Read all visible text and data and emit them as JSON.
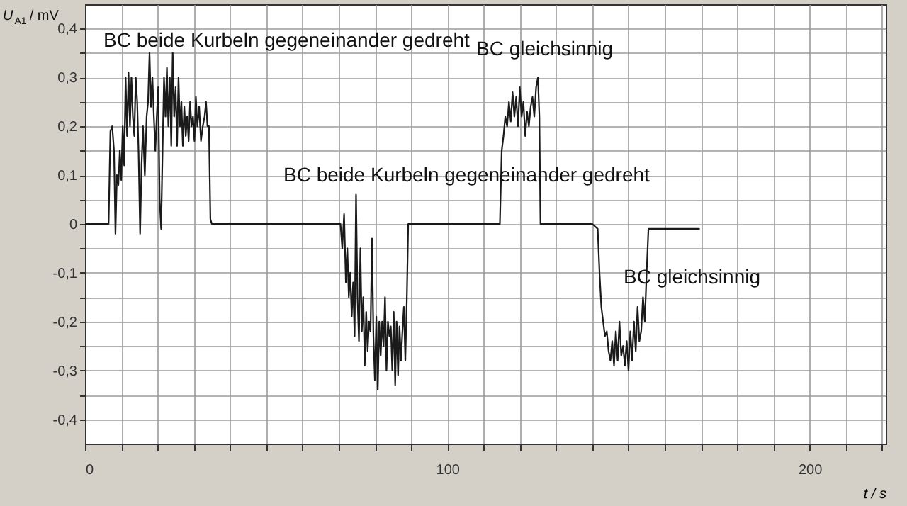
{
  "chart_data": {
    "type": "line",
    "x": [
      0,
      3,
      6.5,
      7,
      7.5,
      8,
      8.4,
      8.8,
      9.2,
      9.6,
      10,
      10.4,
      10.8,
      11.2,
      11.6,
      12,
      12.4,
      12.8,
      13.2,
      13.6,
      14,
      14.4,
      14.8,
      15.2,
      15.6,
      16,
      16.5,
      17,
      17.4,
      17.8,
      18.2,
      18.6,
      19,
      19.4,
      19.8,
      20.2,
      20.6,
      21,
      21.4,
      21.8,
      22.2,
      22.6,
      23,
      23.4,
      23.8,
      24.2,
      24.6,
      25,
      25.4,
      25.8,
      26.2,
      26.6,
      27,
      27.4,
      27.8,
      28.2,
      28.6,
      29,
      29.4,
      29.8,
      30.2,
      30.6,
      31,
      31.5,
      32,
      32.5,
      33,
      33.4,
      33.8,
      34.2,
      34.6,
      35,
      50,
      70.5,
      71,
      71.5,
      72,
      72.4,
      72.8,
      73.2,
      73.6,
      74,
      74.4,
      74.8,
      75.2,
      75.6,
      76,
      76.4,
      76.8,
      77.2,
      77.6,
      78,
      78.4,
      78.8,
      79.2,
      79.6,
      80,
      80.4,
      80.8,
      81.2,
      81.6,
      82,
      82.4,
      82.8,
      83.2,
      83.6,
      84,
      84.4,
      84.8,
      85.2,
      85.6,
      86,
      86.4,
      86.8,
      87.2,
      87.6,
      88,
      88.4,
      88.8,
      89.2,
      100,
      114.5,
      115,
      115.5,
      116,
      116.5,
      117,
      117.5,
      118,
      118.5,
      119,
      119.5,
      120,
      120.5,
      121,
      121.5,
      122,
      122.5,
      123,
      123.5,
      124,
      124.5,
      125,
      125.4,
      125.7,
      140,
      141.5,
      142,
      142.5,
      143,
      143.5,
      144,
      144.5,
      145,
      145.5,
      146,
      146.5,
      147,
      147.5,
      148,
      148.5,
      149,
      149.5,
      150,
      150.5,
      151,
      151.5,
      152,
      152.5,
      153,
      153.5,
      154,
      154.5,
      155,
      155.5,
      169.5
    ],
    "series": [
      {
        "color": "#1a1a1a",
        "values": [
          0,
          0,
          0,
          0.19,
          0.2,
          0.15,
          -0.02,
          0.1,
          0.08,
          0.15,
          0.09,
          0.2,
          0.12,
          0.3,
          0.18,
          0.31,
          0.2,
          0.3,
          0.22,
          0.18,
          0.3,
          0.25,
          0.14,
          -0.02,
          0.12,
          0.2,
          0.1,
          0.22,
          0.25,
          0.35,
          0.24,
          0.3,
          0.22,
          0.15,
          0.22,
          0.28,
          0.05,
          -0.01,
          0.15,
          0.3,
          0.22,
          0.32,
          0.2,
          0.3,
          0.16,
          0.35,
          0.22,
          0.28,
          0.16,
          0.3,
          0.2,
          0.25,
          0.16,
          0.24,
          0.18,
          0.22,
          0.17,
          0.25,
          0.2,
          0.22,
          0.17,
          0.26,
          0.2,
          0.24,
          0.17,
          0.2,
          0.22,
          0.25,
          0.2,
          0.2,
          0.01,
          0,
          0,
          0,
          -0.05,
          0.02,
          -0.12,
          -0.05,
          -0.15,
          -0.1,
          -0.19,
          -0.12,
          -0.23,
          0.06,
          -0.15,
          -0.24,
          -0.05,
          -0.22,
          -0.15,
          -0.29,
          -0.18,
          -0.26,
          -0.2,
          -0.22,
          -0.03,
          -0.23,
          -0.32,
          -0.19,
          -0.34,
          -0.2,
          -0.27,
          -0.2,
          -0.25,
          -0.15,
          -0.3,
          -0.2,
          -0.23,
          -0.21,
          -0.3,
          -0.18,
          -0.33,
          -0.2,
          -0.31,
          -0.21,
          -0.28,
          -0.22,
          -0.17,
          -0.28,
          -0.16,
          0,
          0,
          0,
          0.15,
          0.18,
          0.22,
          0.2,
          0.25,
          0.21,
          0.27,
          0.22,
          0.26,
          0.2,
          0.28,
          0.22,
          0.25,
          0.18,
          0.23,
          0.2,
          0.24,
          0.26,
          0.22,
          0.28,
          0.3,
          0.22,
          0,
          0,
          -0.01,
          -0.1,
          -0.17,
          -0.2,
          -0.23,
          -0.22,
          -0.26,
          -0.28,
          -0.24,
          -0.29,
          -0.22,
          -0.28,
          -0.2,
          -0.27,
          -0.25,
          -0.29,
          -0.24,
          -0.3,
          -0.22,
          -0.28,
          -0.2,
          -0.26,
          -0.17,
          -0.24,
          -0.22,
          -0.15,
          -0.2,
          -0.1,
          -0.01,
          -0.01
        ]
      }
    ],
    "xlabel": "t / s",
    "ylabel": "U$_{A1}$ / mV",
    "xlim": [
      0,
      221
    ],
    "ylim": [
      -0.45,
      0.45
    ],
    "xticks": [
      0,
      {
        "value": 10,
        "label": null
      },
      {
        "value": 20,
        "label": null
      },
      {
        "value": 30,
        "label": null
      },
      {
        "value": 40,
        "label": null
      },
      {
        "value": 50,
        "label": null
      },
      {
        "value": 60,
        "label": null
      },
      {
        "value": 70,
        "label": null
      },
      {
        "value": 80,
        "label": null
      },
      {
        "value": 90,
        "label": null
      },
      100,
      {
        "value": 110,
        "label": null
      },
      {
        "value": 120,
        "label": null
      },
      {
        "value": 130,
        "label": null
      },
      {
        "value": 140,
        "label": null
      },
      {
        "value": 150,
        "label": null
      },
      {
        "value": 160,
        "label": null
      },
      {
        "value": 170,
        "label": null
      },
      {
        "value": 180,
        "label": null
      },
      {
        "value": 190,
        "label": null
      },
      200,
      {
        "value": 210,
        "label": null
      },
      {
        "value": 220,
        "label": null
      }
    ],
    "yticks": [
      {
        "value": -0.4,
        "label": "-0,4"
      },
      {
        "value": -0.35,
        "label": null
      },
      {
        "value": -0.3,
        "label": "-0,3"
      },
      {
        "value": -0.25,
        "label": null
      },
      {
        "value": -0.2,
        "label": "-0,2"
      },
      {
        "value": -0.15,
        "label": null
      },
      {
        "value": -0.1,
        "label": "-0,1"
      },
      {
        "value": -0.05,
        "label": null
      },
      0,
      {
        "value": 0.05,
        "label": null
      },
      {
        "value": 0.1,
        "label": "0,1"
      },
      {
        "value": 0.15,
        "label": null
      },
      {
        "value": 0.2,
        "label": "0,2"
      },
      {
        "value": 0.25,
        "label": null
      },
      {
        "value": 0.3,
        "label": "0,3"
      },
      {
        "value": 0.35,
        "label": null
      },
      {
        "value": 0.4,
        "label": "0,4"
      }
    ],
    "grid": true,
    "annotations": [
      "BC beide Kurbeln gegeneinander gedreht",
      "BC beide Kurbeln gegeneinander gedreht",
      "BC gleichsinnig",
      "BC gleichsinnig"
    ]
  }
}
